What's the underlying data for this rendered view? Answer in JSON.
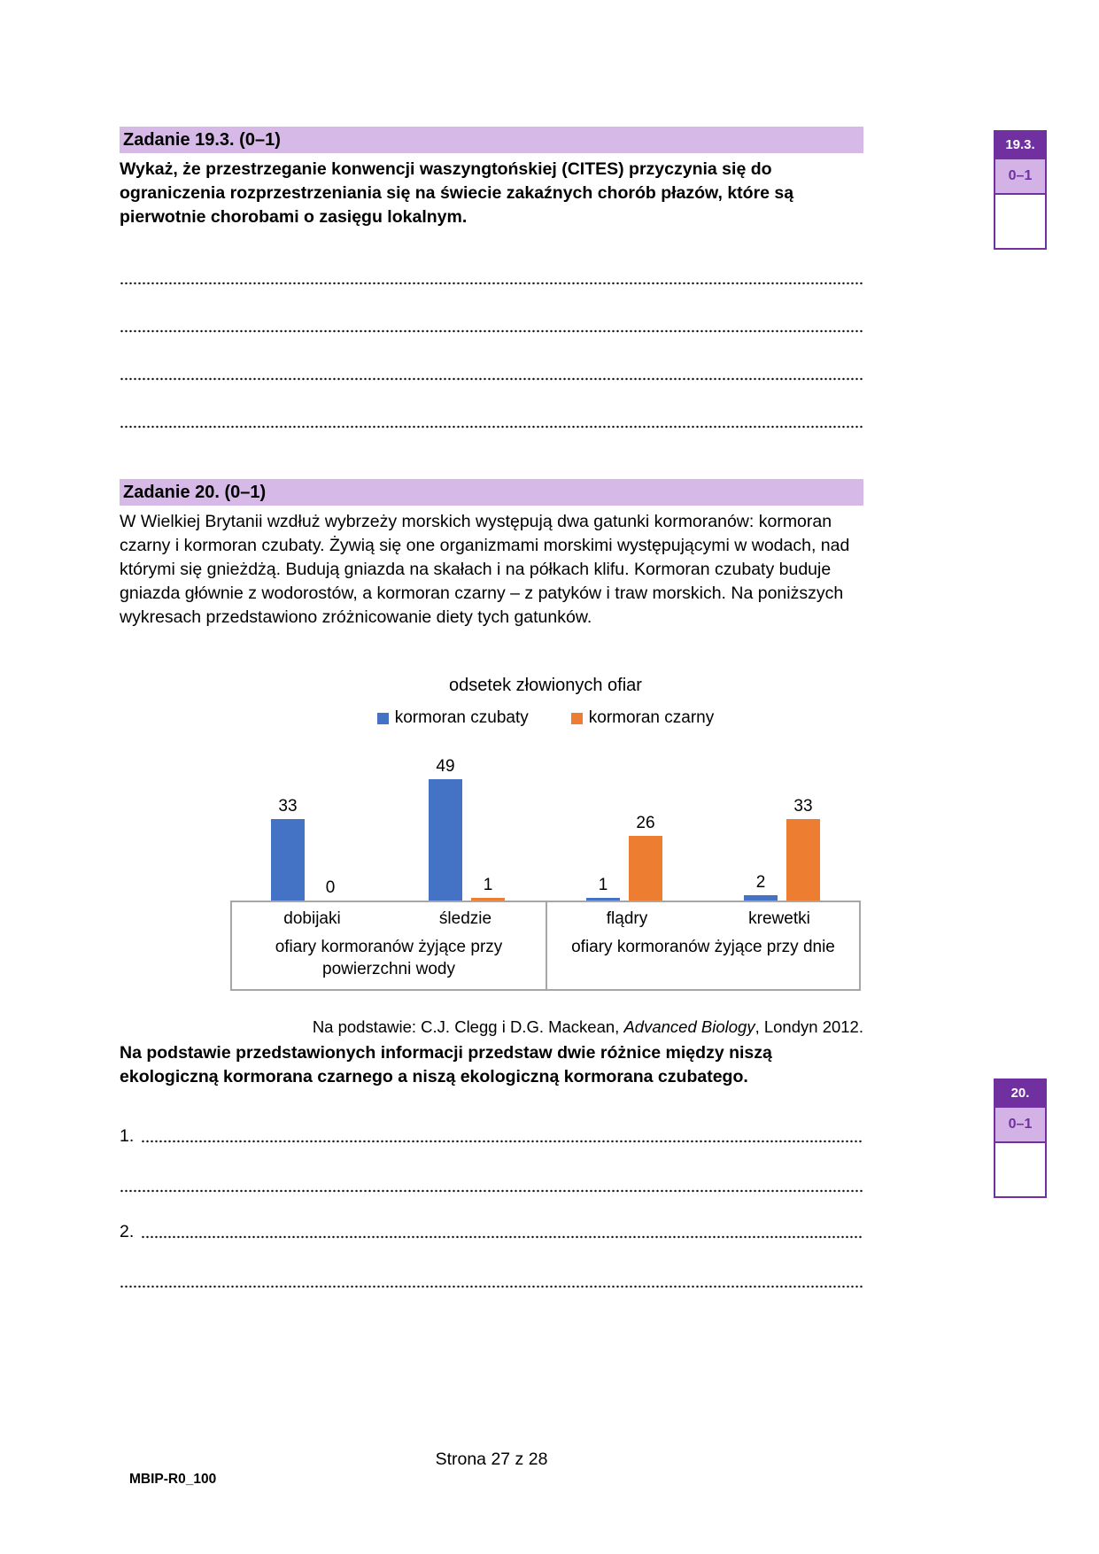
{
  "colors": {
    "accent_purple": "#7030A0",
    "band_lavender": "#D6B9E7",
    "score_fill": "#D3B3E5",
    "bar_blue": "#4472C4",
    "bar_orange": "#ED7D31",
    "axis_gray": "#A6A6A6"
  },
  "task193": {
    "heading": "Zadanie 19.3. (0–1)",
    "body": "Wykaż, że przestrzeganie konwencji waszyngtońskiej (CITES) przyczynia się do ograniczenia rozprzestrzeniania się na świecie zakaźnych chorób płazów, które są pierwotnie chorobami o zasięgu lokalnym.",
    "score_box": {
      "label": "19.3.",
      "points": "0–1"
    }
  },
  "task20": {
    "heading": "Zadanie 20. (0–1)",
    "body": "W Wielkiej Brytanii wzdłuż wybrzeży morskich występują dwa gatunki kormoranów: kormoran czarny i kormoran czubaty. Żywią się one organizmami morskimi występującymi w wodach, nad którymi się gnieżdżą. Budują gniazda na skałach i na półkach klifu. Kormoran czubaty buduje gniazda głównie z wodorostów, a kormoran czarny – z patyków i traw morskich. Na poniższych wykresach przedstawiono zróżnicowanie diety tych gatunków.",
    "source_prefix": "Na podstawie: C.J. Clegg i D.G. Mackean, ",
    "source_italic": "Advanced Biology",
    "source_suffix": ", Londyn 2012.",
    "question": "Na podstawie przedstawionych informacji przedstaw dwie różnice między niszą ekologiczną kormorana czarnego a niszą ekologiczną kormorana czubatego.",
    "answer_numbers": [
      "1.",
      "2."
    ],
    "score_box": {
      "label": "20.",
      "points": "0–1"
    }
  },
  "chart_data": {
    "type": "bar",
    "title": "odsetek złowionych ofiar",
    "categories": [
      "dobijaki",
      "śledzie",
      "flądry",
      "krewetki"
    ],
    "series": [
      {
        "name": "kormoran czubaty",
        "color": "#4472C4",
        "values": [
          33,
          49,
          1,
          2
        ]
      },
      {
        "name": "kormoran czarny",
        "color": "#ED7D31",
        "values": [
          0,
          1,
          26,
          33
        ]
      }
    ],
    "groups": [
      {
        "label": "ofiary kormoranów żyjące przy powierzchni wody",
        "categories": [
          "dobijaki",
          "śledzie"
        ]
      },
      {
        "label": "ofiary kormoranów żyjące przy dnie",
        "categories": [
          "flądry",
          "krewetki"
        ]
      }
    ],
    "ylim": [
      0,
      49
    ],
    "grid": false,
    "legend_position": "top",
    "value_labels": true,
    "xlabel": "",
    "ylabel": ""
  },
  "footer": {
    "page": "Strona 27 z 28",
    "code": "MBIP-R0_100"
  }
}
